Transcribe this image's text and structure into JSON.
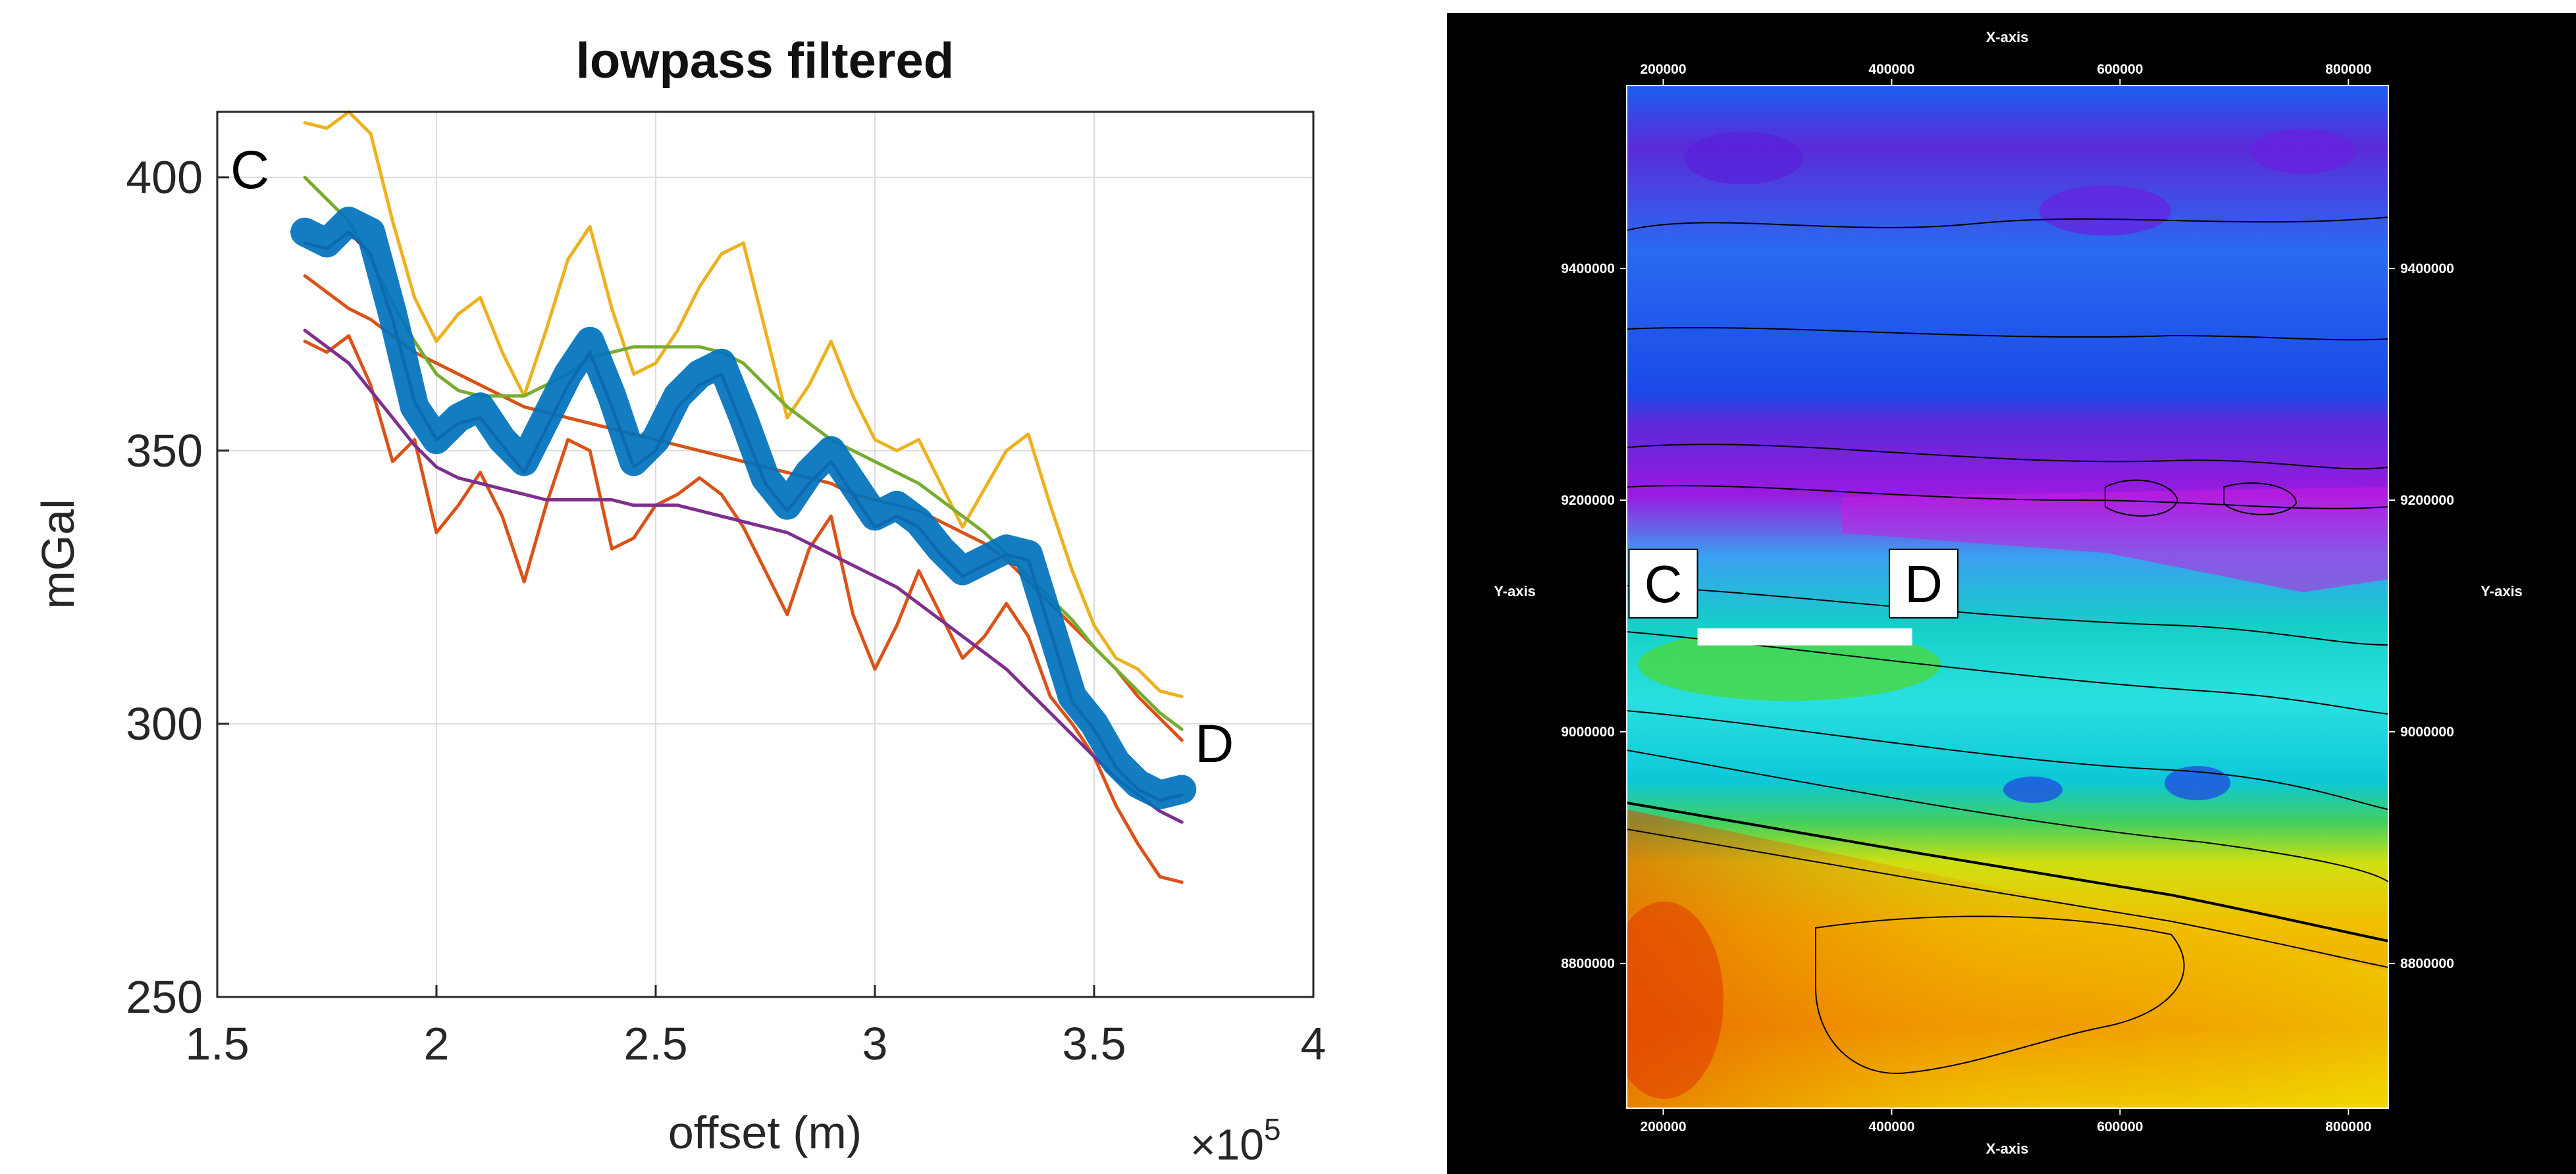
{
  "chart_data": [
    {
      "type": "line",
      "title": "lowpass filtered",
      "xlabel": "offset (m)",
      "ylabel": "mGal",
      "x_multiplier": "×10^5",
      "x_multiplier_base": "×10",
      "x_multiplier_exp": "5",
      "xlim": [
        1.5,
        4
      ],
      "ylim": [
        250,
        412
      ],
      "xticks": [
        1.5,
        2,
        2.5,
        3,
        3.5,
        4
      ],
      "xtick_labels": [
        "1.5",
        "2",
        "2.5",
        "3",
        "3.5",
        "4"
      ],
      "yticks": [
        250,
        300,
        350,
        400
      ],
      "ytick_labels": [
        "250",
        "300",
        "350",
        "400"
      ],
      "grid": true,
      "annotations": [
        {
          "text": "C",
          "x": 1.53,
          "y": 398
        },
        {
          "text": "D",
          "x": 3.73,
          "y": 293
        }
      ],
      "series": [
        {
          "color": "#0072bd",
          "style": "thick",
          "x": [
            1.7,
            1.75,
            1.8,
            1.85,
            1.9,
            1.95,
            2.0,
            2.05,
            2.1,
            2.15,
            2.2,
            2.25,
            2.3,
            2.35,
            2.4,
            2.45,
            2.5,
            2.55,
            2.6,
            2.65,
            2.7,
            2.75,
            2.8,
            2.85,
            2.9,
            2.95,
            3.0,
            3.05,
            3.1,
            3.15,
            3.2,
            3.25,
            3.3,
            3.35,
            3.4,
            3.45,
            3.5,
            3.55,
            3.6,
            3.65,
            3.7
          ],
          "y": [
            390,
            388,
            392,
            390,
            375,
            358,
            352,
            356,
            358,
            352,
            348,
            356,
            364,
            370,
            360,
            348,
            352,
            360,
            364,
            366,
            356,
            345,
            340,
            346,
            350,
            344,
            338,
            340,
            337,
            332,
            328,
            330,
            332,
            331,
            318,
            305,
            300,
            293,
            289,
            287,
            288
          ]
        },
        {
          "color": "#d95319",
          "style": "thin",
          "x": [
            1.7,
            1.75,
            1.8,
            1.85,
            1.9,
            1.95,
            2.0,
            2.05,
            2.1,
            2.15,
            2.2,
            2.25,
            2.3,
            2.35,
            2.4,
            2.45,
            2.5,
            2.55,
            2.6,
            2.65,
            2.7,
            2.75,
            2.8,
            2.85,
            2.9,
            2.95,
            3.0,
            3.05,
            3.1,
            3.15,
            3.2,
            3.25,
            3.3,
            3.35,
            3.4,
            3.45,
            3.5,
            3.55,
            3.6,
            3.65,
            3.7
          ],
          "y": [
            382,
            379,
            376,
            374,
            371,
            368,
            366,
            364,
            362,
            360,
            358,
            357,
            356,
            355,
            354,
            353,
            352,
            351,
            350,
            349,
            348,
            347,
            346,
            345,
            344,
            342,
            341,
            340,
            339,
            337,
            335,
            333,
            330,
            326,
            322,
            318,
            314,
            310,
            305,
            301,
            297
          ]
        },
        {
          "color": "#d95319",
          "style": "thin",
          "x": [
            1.7,
            1.75,
            1.8,
            1.85,
            1.9,
            1.95,
            2.0,
            2.05,
            2.1,
            2.15,
            2.2,
            2.25,
            2.3,
            2.35,
            2.4,
            2.45,
            2.5,
            2.55,
            2.6,
            2.65,
            2.7,
            2.75,
            2.8,
            2.85,
            2.9,
            2.95,
            3.0,
            3.05,
            3.1,
            3.15,
            3.2,
            3.25,
            3.3,
            3.35,
            3.4,
            3.45,
            3.5,
            3.55,
            3.6,
            3.65,
            3.7
          ],
          "y": [
            370,
            368,
            371,
            362,
            348,
            352,
            335,
            340,
            346,
            338,
            326,
            340,
            352,
            350,
            332,
            334,
            340,
            342,
            345,
            342,
            336,
            328,
            320,
            332,
            338,
            320,
            310,
            318,
            328,
            320,
            312,
            316,
            322,
            316,
            305,
            300,
            294,
            285,
            278,
            272,
            271
          ]
        },
        {
          "color": "#edb120",
          "style": "thin",
          "x": [
            1.7,
            1.75,
            1.8,
            1.85,
            1.9,
            1.95,
            2.0,
            2.05,
            2.1,
            2.15,
            2.2,
            2.25,
            2.3,
            2.35,
            2.4,
            2.45,
            2.5,
            2.55,
            2.6,
            2.65,
            2.7,
            2.75,
            2.8,
            2.85,
            2.9,
            2.95,
            3.0,
            3.05,
            3.1,
            3.15,
            3.2,
            3.25,
            3.3,
            3.35,
            3.4,
            3.45,
            3.5,
            3.55,
            3.6,
            3.65,
            3.7
          ],
          "y": [
            410,
            409,
            412,
            408,
            392,
            378,
            370,
            375,
            378,
            368,
            360,
            372,
            385,
            391,
            376,
            364,
            366,
            372,
            380,
            386,
            388,
            372,
            356,
            362,
            370,
            360,
            352,
            350,
            352,
            344,
            336,
            343,
            350,
            353,
            340,
            328,
            318,
            312,
            310,
            306,
            305
          ]
        },
        {
          "color": "#7e2f8e",
          "style": "thin",
          "x": [
            1.7,
            1.75,
            1.8,
            1.85,
            1.9,
            1.95,
            2.0,
            2.05,
            2.1,
            2.15,
            2.2,
            2.25,
            2.3,
            2.35,
            2.4,
            2.45,
            2.5,
            2.55,
            2.6,
            2.65,
            2.7,
            2.75,
            2.8,
            2.85,
            2.9,
            2.95,
            3.0,
            3.05,
            3.1,
            3.15,
            3.2,
            3.25,
            3.3,
            3.35,
            3.4,
            3.45,
            3.5,
            3.55,
            3.6,
            3.65,
            3.7
          ],
          "y": [
            372,
            369,
            366,
            361,
            356,
            351,
            347,
            345,
            344,
            343,
            342,
            341,
            341,
            341,
            341,
            340,
            340,
            340,
            339,
            338,
            337,
            336,
            335,
            333,
            331,
            329,
            327,
            325,
            322,
            319,
            316,
            313,
            310,
            306,
            302,
            298,
            294,
            290,
            287,
            284,
            282
          ]
        },
        {
          "color": "#77ac30",
          "style": "thin",
          "x": [
            1.7,
            1.75,
            1.8,
            1.85,
            1.9,
            1.95,
            2.0,
            2.05,
            2.1,
            2.15,
            2.2,
            2.25,
            2.3,
            2.35,
            2.4,
            2.45,
            2.5,
            2.55,
            2.6,
            2.65,
            2.7,
            2.75,
            2.8,
            2.85,
            2.9,
            2.95,
            3.0,
            3.05,
            3.1,
            3.15,
            3.2,
            3.25,
            3.3,
            3.35,
            3.4,
            3.45,
            3.5,
            3.55,
            3.6,
            3.65,
            3.7
          ],
          "y": [
            400,
            396,
            392,
            385,
            377,
            370,
            364,
            361,
            360,
            360,
            360,
            362,
            364,
            367,
            368,
            369,
            369,
            369,
            369,
            368,
            366,
            362,
            358,
            355,
            352,
            350,
            348,
            346,
            344,
            341,
            338,
            335,
            331,
            327,
            323,
            319,
            314,
            310,
            306,
            302,
            299
          ]
        },
        {
          "color": "#a2142f",
          "style": "thin",
          "x": [
            1.7,
            1.75,
            1.8,
            1.85,
            1.9,
            1.95,
            2.0,
            2.05,
            2.1,
            2.15,
            2.2,
            2.25,
            2.3,
            2.35,
            2.4,
            2.45,
            2.5,
            2.55,
            2.6,
            2.65,
            2.7,
            2.75,
            2.8,
            2.85,
            2.9,
            2.95,
            3.0,
            3.05,
            3.1,
            3.15,
            3.2,
            3.25,
            3.3,
            3.35,
            3.4,
            3.45,
            3.5,
            3.55,
            3.6,
            3.65,
            3.7
          ],
          "y": [
            388,
            387,
            390,
            386,
            374,
            359,
            352,
            355,
            356,
            351,
            346,
            354,
            362,
            368,
            358,
            347,
            350,
            358,
            362,
            364,
            354,
            344,
            339,
            344,
            348,
            342,
            336,
            338,
            336,
            331,
            327,
            329,
            331,
            330,
            317,
            304,
            299,
            292,
            288,
            286,
            287
          ]
        }
      ]
    },
    {
      "type": "heatmap",
      "title": "",
      "xlabel": "X-axis",
      "ylabel": "Y-axis",
      "xticks": [
        200000,
        400000,
        600000,
        800000
      ],
      "xtick_labels": [
        "200000",
        "400000",
        "600000",
        "800000"
      ],
      "yticks": [
        9400000,
        9200000,
        9000000,
        8800000
      ],
      "ytick_labels": [
        "9400000",
        "9200000",
        "9000000",
        "8800000"
      ],
      "xlim": [
        168000,
        835000
      ],
      "ylim": [
        8675000,
        9558000
      ],
      "colorscale": [
        "#d92a00",
        "#f08c00",
        "#f0e000",
        "#2ccc1a",
        "#0ccdd8",
        "#1a60f0",
        "#3a2bd8",
        "#8a1ae0",
        "#e020e0"
      ],
      "profile_line": {
        "x_start": 230000,
        "x_end": 418000,
        "y": 9082000,
        "color": "#ffffff"
      },
      "labels": [
        {
          "text": "C",
          "x": 200000,
          "y": 9128000
        },
        {
          "text": "D",
          "x": 428000,
          "y": 9128000
        }
      ]
    }
  ]
}
